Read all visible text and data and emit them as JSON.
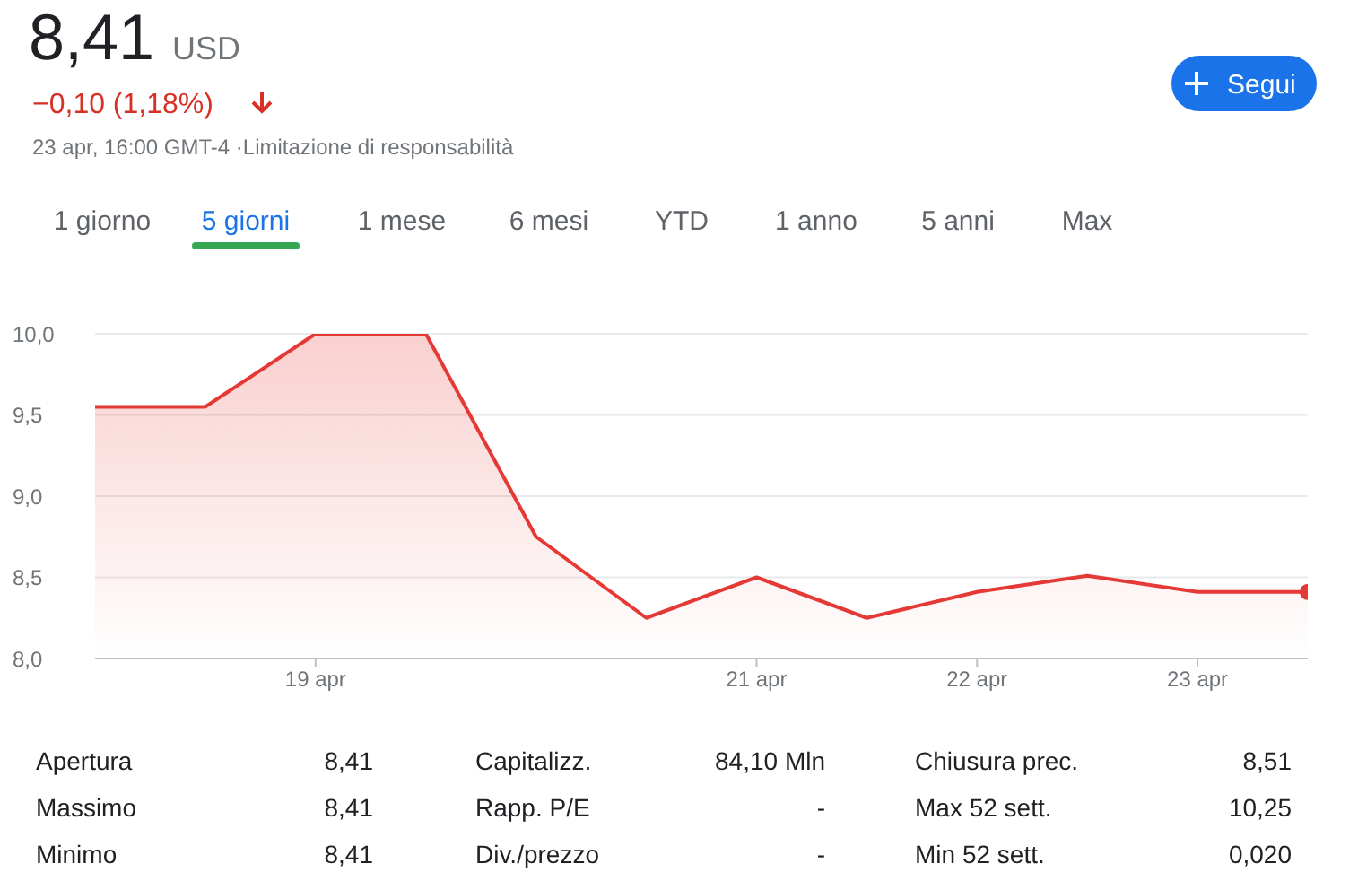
{
  "chart_data": {
    "type": "area",
    "categories": [
      null,
      null,
      "19 apr",
      null,
      null,
      null,
      "21 apr",
      null,
      "22 apr",
      null,
      "23 apr",
      null
    ],
    "series": [
      {
        "color": "#e53935",
        "values": [
          9.55,
          9.55,
          10.0,
          10.0,
          8.75,
          8.25,
          8.5,
          8.25,
          8.41,
          8.51,
          8.41,
          8.41
        ]
      }
    ],
    "ylim": [
      8,
      10
    ],
    "yticks": [
      {
        "value": 8,
        "label": "8,0"
      },
      {
        "value": 8.5,
        "label": "8,5"
      },
      {
        "value": 9,
        "label": "9,0"
      },
      {
        "value": 9.5,
        "label": "9,5"
      },
      {
        "value": 10,
        "label": "10,0"
      }
    ],
    "grid": "y",
    "annotations": [
      "8,41",
      "USD",
      "−0,10 (1,18%)",
      "23 apr, 16:00 GMT-4 ·Limitazione di responsabilità",
      "Segui",
      "1 giorno",
      "5 giorni",
      "1 mese",
      "6 mesi",
      "YTD",
      "1 anno",
      "5 anni",
      "Max",
      "Apertura",
      "8,41",
      "Capitalizz.",
      "84,10 Mln",
      "Chiusura prec.",
      "8,51",
      "Massimo",
      "8,41",
      "Rapp. P/E",
      "-",
      "Max 52 sett.",
      "10,25",
      "Minimo",
      "8,41",
      "Div./prezzo",
      "-",
      "Min 52 sett.",
      "0,020"
    ]
  }
}
